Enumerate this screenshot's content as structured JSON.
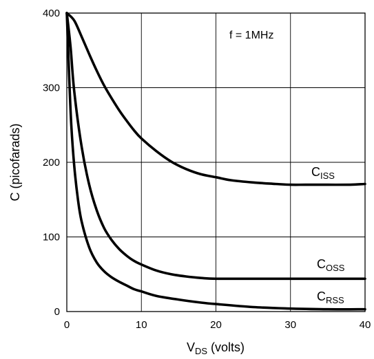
{
  "chart_data": {
    "type": "line",
    "xlabel": {
      "main": "V",
      "sub": "DS",
      "rest": " (volts)"
    },
    "ylabel": "C (picofarads)",
    "xlim": [
      0,
      40
    ],
    "ylim": [
      0,
      400
    ],
    "xticks": [
      0,
      10,
      20,
      30,
      40
    ],
    "yticks": [
      0,
      100,
      200,
      300,
      400
    ],
    "grid": true,
    "annotation": "f = 1MHz",
    "series": [
      {
        "name": "C_ISS",
        "label_main": "C",
        "label_sub": "ISS",
        "x": [
          0,
          1,
          2,
          3,
          4,
          5,
          6,
          7,
          8,
          9,
          10,
          12,
          14,
          16,
          18,
          20,
          22,
          25,
          28,
          30,
          32,
          35,
          38,
          40
        ],
        "y": [
          400,
          390,
          368,
          345,
          323,
          303,
          286,
          270,
          256,
          243,
          232,
          215,
          201,
          191,
          184,
          180,
          176,
          173,
          171,
          170,
          170,
          170,
          170,
          171
        ]
      },
      {
        "name": "C_OSS",
        "label_main": "C",
        "label_sub": "OSS",
        "x": [
          0,
          0.5,
          1,
          2,
          3,
          4,
          5,
          6,
          7,
          8,
          9,
          10,
          12,
          14,
          16,
          18,
          20,
          25,
          30,
          35,
          40
        ],
        "y": [
          400,
          355,
          295,
          220,
          170,
          136,
          112,
          96,
          84,
          75,
          68,
          63,
          55,
          50,
          47,
          45,
          44,
          44,
          44,
          44,
          44
        ]
      },
      {
        "name": "C_RSS",
        "label_main": "C",
        "label_sub": "RSS",
        "x": [
          0,
          0.3,
          0.6,
          1,
          1.5,
          2,
          3,
          4,
          5,
          6,
          7,
          8,
          9,
          10,
          12,
          15,
          18,
          20,
          25,
          30,
          35,
          40
        ],
        "y": [
          400,
          320,
          250,
          195,
          150,
          120,
          86,
          66,
          54,
          46,
          40,
          35,
          30,
          27,
          21,
          16,
          12,
          10,
          6,
          4,
          3,
          3
        ]
      }
    ]
  }
}
